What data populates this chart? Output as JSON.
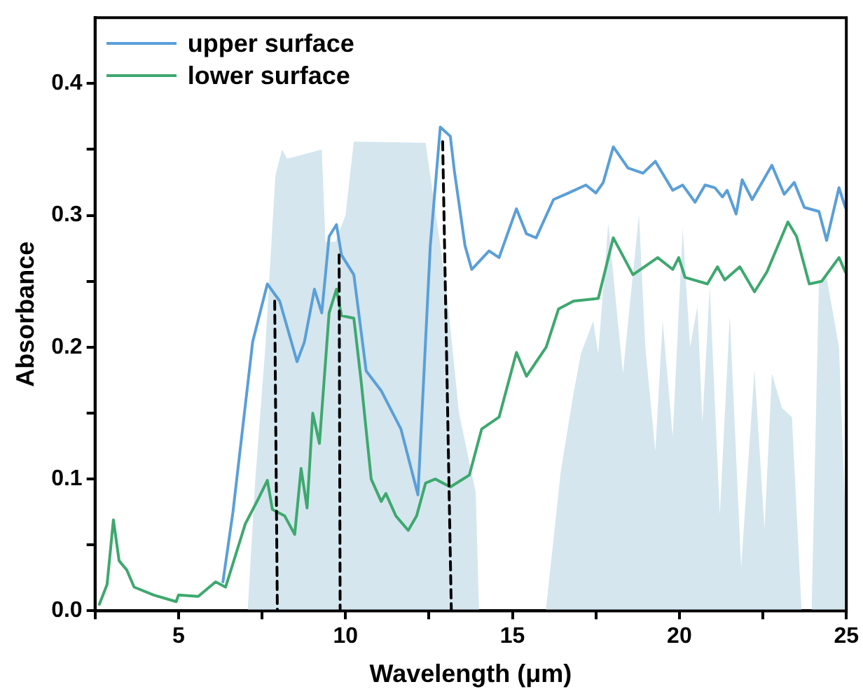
{
  "chart_data": {
    "type": "line",
    "xlabel": "Wavelength (μm)",
    "ylabel": "Absorbance",
    "xlim": [
      2.5,
      25
    ],
    "ylim": [
      0,
      0.45
    ],
    "xticks": [
      {
        "value": 2.5,
        "label": null
      },
      5,
      {
        "value": 7.5,
        "label": null
      },
      10,
      {
        "value": 12.5,
        "label": null
      },
      15,
      {
        "value": 17.5,
        "label": null
      },
      20,
      {
        "value": 22.5,
        "label": null
      },
      25
    ],
    "yticks": [
      {
        "value": 0,
        "label": "0.0"
      },
      {
        "value": 0.05,
        "label": null
      },
      0.1,
      {
        "value": 0.15,
        "label": null
      },
      0.2,
      {
        "value": 0.25,
        "label": null
      },
      0.3,
      {
        "value": 0.35,
        "label": null
      },
      0.4
    ],
    "legend": "top left",
    "series": [
      {
        "type": "area",
        "color": "#d5e6ef",
        "x": [
          7.07,
          7.3,
          7.6,
          7.9,
          8.1,
          8.25,
          9.29,
          9.4,
          9.7,
          10.0,
          10.25,
          12.4,
          12.54,
          13.0,
          13.4,
          13.9,
          14.0,
          16.0,
          16.45,
          16.83,
          17.05,
          17.42,
          17.57,
          17.87,
          18.31,
          18.79,
          18.98,
          19.28,
          19.5,
          19.8,
          20.1,
          20.32,
          20.54,
          20.69,
          20.91,
          21.21,
          21.51,
          21.85,
          22.25,
          22.55,
          22.77,
          23.07,
          23.37,
          23.66,
          23.96,
          24.18,
          24.41,
          24.78,
          25
        ],
        "values": [
          0,
          0.1,
          0.2,
          0.33,
          0.35,
          0.343,
          0.35,
          0.28,
          0.28,
          0.3,
          0.356,
          0.355,
          0.33,
          0.25,
          0.15,
          0.09,
          0,
          0,
          0.106,
          0.165,
          0.195,
          0.22,
          0.195,
          0.294,
          0.18,
          0.301,
          0.2,
          0.121,
          0.22,
          0.132,
          0.29,
          0.2,
          0.231,
          0.143,
          0.246,
          0.073,
          0.224,
          0.033,
          0.183,
          0.062,
          0.18,
          0.154,
          0.147,
          0,
          0,
          0.25,
          0.253,
          0.2,
          0.055
        ]
      },
      {
        "name": "upper surface",
        "type": "line",
        "color": "#5a9fd8",
        "x": [
          6.33,
          6.63,
          7.22,
          7.66,
          8.03,
          8.55,
          8.77,
          9.07,
          9.29,
          9.51,
          9.73,
          9.88,
          10.25,
          10.62,
          11.07,
          11.66,
          12.17,
          12.54,
          12.84,
          13.14,
          13.26,
          13.58,
          13.78,
          14.3,
          14.6,
          15.12,
          15.42,
          15.71,
          16.23,
          16.68,
          17.2,
          17.5,
          17.72,
          18.02,
          18.46,
          18.91,
          19.28,
          19.8,
          20.1,
          20.47,
          20.77,
          21.06,
          21.29,
          21.43,
          21.7,
          21.88,
          22.18,
          22.77,
          23.14,
          23.44,
          23.74,
          24.18,
          24.41,
          24.78,
          24.97
        ],
        "values": [
          0.022,
          0.075,
          0.204,
          0.248,
          0.235,
          0.189,
          0.204,
          0.244,
          0.226,
          0.284,
          0.293,
          0.27,
          0.255,
          0.182,
          0.167,
          0.138,
          0.088,
          0.277,
          0.367,
          0.36,
          0.334,
          0.277,
          0.259,
          0.273,
          0.268,
          0.305,
          0.286,
          0.283,
          0.312,
          0.317,
          0.323,
          0.317,
          0.325,
          0.352,
          0.336,
          0.332,
          0.341,
          0.319,
          0.323,
          0.31,
          0.323,
          0.321,
          0.314,
          0.319,
          0.301,
          0.327,
          0.312,
          0.338,
          0.316,
          0.325,
          0.306,
          0.303,
          0.281,
          0.321,
          0.306
        ]
      },
      {
        "name": "lower surface",
        "type": "line",
        "color": "#3ea86e",
        "x": [
          2.63,
          2.86,
          3.05,
          3.22,
          3.45,
          3.67,
          4.26,
          4.93,
          5.0,
          5.59,
          6.11,
          6.41,
          7.0,
          7.37,
          7.66,
          7.81,
          8.18,
          8.48,
          8.67,
          8.85,
          9.02,
          9.22,
          9.51,
          9.73,
          9.88,
          10.25,
          10.47,
          10.77,
          11.07,
          11.21,
          11.51,
          11.88,
          12.13,
          12.4,
          12.69,
          13.14,
          13.71,
          14.08,
          14.6,
          15.12,
          15.42,
          16.01,
          16.38,
          16.83,
          17.57,
          18.02,
          18.61,
          19.35,
          19.8,
          19.98,
          20.17,
          20.84,
          21.14,
          21.36,
          21.81,
          22.25,
          22.62,
          23.25,
          23.51,
          23.89,
          24.26,
          24.78,
          24.97
        ],
        "values": [
          0.005,
          0.02,
          0.069,
          0.038,
          0.031,
          0.018,
          0.012,
          0.007,
          0.012,
          0.011,
          0.022,
          0.018,
          0.066,
          0.084,
          0.099,
          0.077,
          0.072,
          0.058,
          0.108,
          0.078,
          0.15,
          0.127,
          0.226,
          0.244,
          0.224,
          0.222,
          0.174,
          0.1,
          0.083,
          0.089,
          0.072,
          0.061,
          0.072,
          0.097,
          0.1,
          0.094,
          0.103,
          0.138,
          0.147,
          0.196,
          0.178,
          0.2,
          0.229,
          0.235,
          0.237,
          0.283,
          0.255,
          0.268,
          0.259,
          0.268,
          0.253,
          0.248,
          0.261,
          0.251,
          0.261,
          0.242,
          0.257,
          0.295,
          0.284,
          0.248,
          0.25,
          0.268,
          0.257
        ]
      },
      {
        "type": "line",
        "color": "#000000",
        "line_style": "dashed",
        "x": [
          7.88,
          7.96
        ],
        "values": [
          0.235,
          0
        ]
      },
      {
        "type": "line",
        "color": "#000000",
        "line_style": "dashed",
        "x": [
          9.81,
          9.84
        ],
        "values": [
          0.27,
          0
        ]
      },
      {
        "type": "line",
        "color": "#000000",
        "line_style": "dashed",
        "x": [
          12.91,
          13.17
        ],
        "values": [
          0.356,
          0
        ]
      }
    ]
  }
}
